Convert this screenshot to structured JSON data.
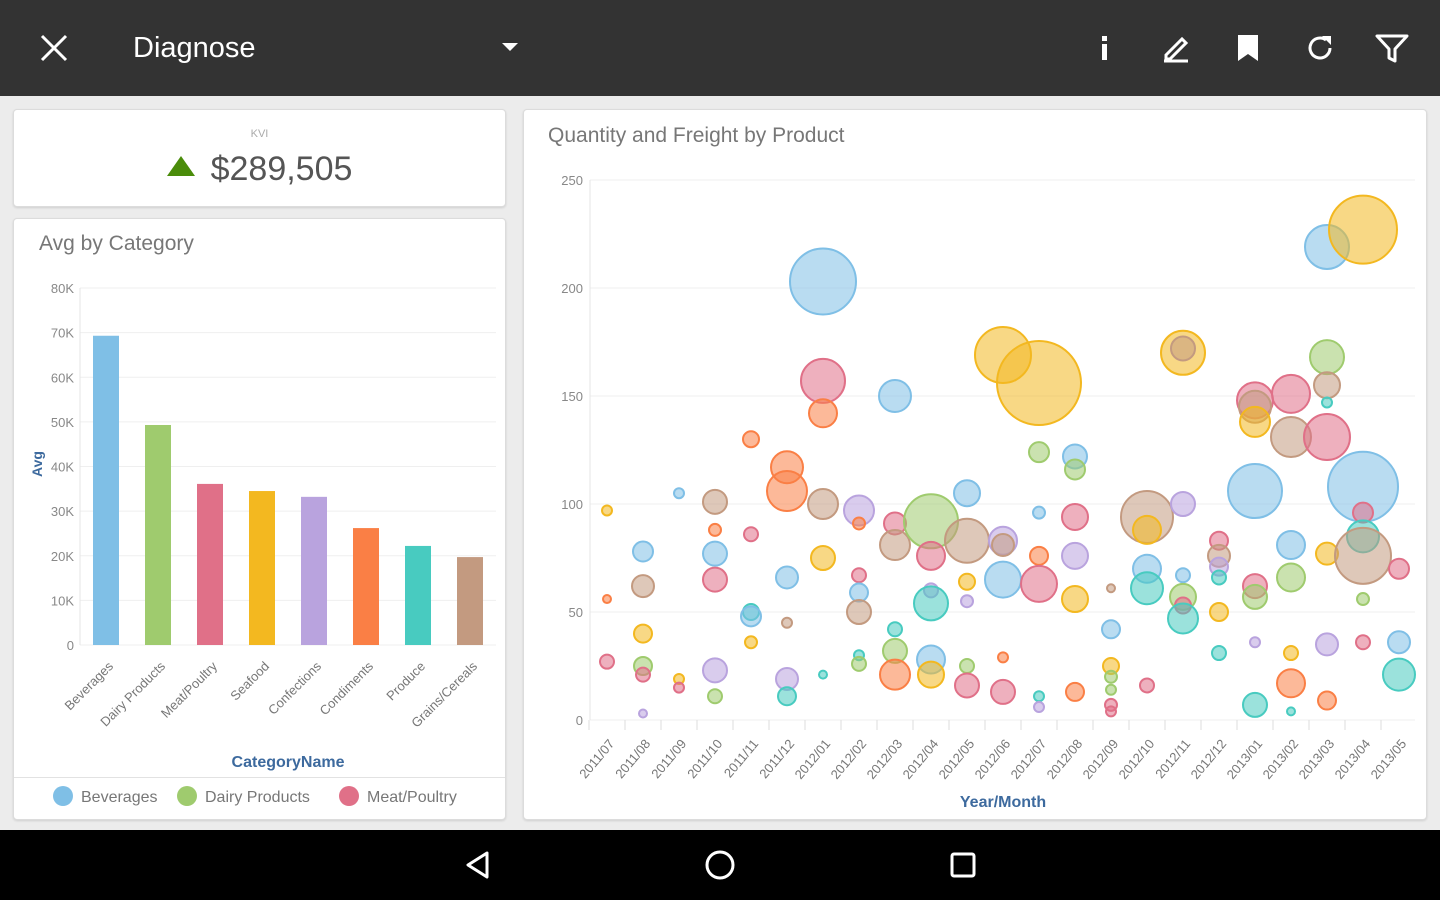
{
  "header": {
    "title": "Diagnose",
    "icons": [
      "close-icon",
      "dropdown-icon",
      "info-icon",
      "edit-icon",
      "bookmark-icon",
      "refresh-icon",
      "filter-icon"
    ]
  },
  "kpi": {
    "label": "KVI",
    "value": "$289,505",
    "trend": "up",
    "trend_color": "#4a8c0a"
  },
  "colors": [
    "#7fbfe6",
    "#9fcb6e",
    "#e07088",
    "#f3b820",
    "#b9a3de",
    "#fa7f45",
    "#48cbc0",
    "#c39a80"
  ],
  "chart_data": [
    {
      "type": "bar",
      "title": "Avg by Category",
      "xlabel": "CategoryName",
      "ylabel": "Avg",
      "categories": [
        "Beverages",
        "Dairy Products",
        "Meat/Poultry",
        "Seafood",
        "Confections",
        "Condiments",
        "Produce",
        "Grains/Cereals"
      ],
      "values": [
        69300,
        49300,
        36100,
        34500,
        33200,
        26200,
        22200,
        19700
      ],
      "ylim": [
        0,
        80000
      ],
      "yticks": [
        "0",
        "10K",
        "20K",
        "30K",
        "40K",
        "50K",
        "60K",
        "70K",
        "80K"
      ],
      "legend": [
        "Beverages",
        "Dairy Products",
        "Meat/Poultry"
      ],
      "legend_placement": "bottom"
    },
    {
      "type": "scatter",
      "title": "Quantity and Freight by Product",
      "xlabel": "Year/Month",
      "ylabel": "",
      "ylim": [
        0,
        250
      ],
      "yticks": [
        "0",
        "50",
        "100",
        "150",
        "200",
        "250"
      ],
      "x": [
        "2011/07",
        "2011/08",
        "2011/09",
        "2011/10",
        "2011/11",
        "2011/12",
        "2012/01",
        "2012/02",
        "2012/03",
        "2012/04",
        "2012/05",
        "2012/06",
        "2012/07",
        "2012/08",
        "2012/09",
        "2012/10",
        "2012/11",
        "2012/12",
        "2013/01",
        "2013/02",
        "2013/03",
        "2013/04",
        "2013/05"
      ],
      "point_fields": [
        "x_index",
        "y",
        "size",
        "category_index"
      ],
      "points": [
        [
          0,
          97,
          5,
          3
        ],
        [
          0,
          56,
          4,
          5
        ],
        [
          0,
          27,
          7,
          2
        ],
        [
          1,
          78,
          10,
          0
        ],
        [
          1,
          62,
          11,
          7
        ],
        [
          1,
          40,
          9,
          3
        ],
        [
          1,
          25,
          9,
          1
        ],
        [
          1,
          21,
          7,
          2
        ],
        [
          1,
          3,
          4,
          4
        ],
        [
          2,
          105,
          5,
          0
        ],
        [
          2,
          19,
          5,
          3
        ],
        [
          2,
          15,
          5,
          2
        ],
        [
          3,
          101,
          12,
          7
        ],
        [
          3,
          88,
          6,
          5
        ],
        [
          3,
          77,
          12,
          0
        ],
        [
          3,
          65,
          12,
          2
        ],
        [
          3,
          23,
          12,
          4
        ],
        [
          3,
          11,
          7,
          1
        ],
        [
          4,
          130,
          8,
          5
        ],
        [
          4,
          86,
          7,
          2
        ],
        [
          4,
          50,
          8,
          6
        ],
        [
          4,
          48,
          10,
          0
        ],
        [
          4,
          36,
          6,
          3
        ],
        [
          5,
          117,
          16,
          5
        ],
        [
          5,
          106,
          20,
          5
        ],
        [
          5,
          66,
          11,
          0
        ],
        [
          5,
          45,
          5,
          7
        ],
        [
          5,
          19,
          11,
          4
        ],
        [
          5,
          11,
          9,
          6
        ],
        [
          6,
          203,
          33,
          0
        ],
        [
          6,
          157,
          22,
          2
        ],
        [
          6,
          142,
          14,
          5
        ],
        [
          6,
          100,
          15,
          7
        ],
        [
          6,
          75,
          12,
          3
        ],
        [
          6,
          21,
          4,
          6
        ],
        [
          7,
          97,
          15,
          4
        ],
        [
          7,
          91,
          6,
          5
        ],
        [
          7,
          67,
          7,
          2
        ],
        [
          7,
          59,
          9,
          0
        ],
        [
          7,
          50,
          12,
          7
        ],
        [
          7,
          30,
          5,
          6
        ],
        [
          7,
          26,
          7,
          1
        ],
        [
          8,
          150,
          16,
          0
        ],
        [
          8,
          91,
          11,
          2
        ],
        [
          8,
          81,
          15,
          7
        ],
        [
          8,
          42,
          7,
          6
        ],
        [
          8,
          32,
          12,
          1
        ],
        [
          8,
          21,
          15,
          5
        ],
        [
          9,
          92,
          27,
          1
        ],
        [
          9,
          76,
          14,
          2
        ],
        [
          9,
          60,
          7,
          4
        ],
        [
          9,
          54,
          17,
          6
        ],
        [
          9,
          28,
          14,
          0
        ],
        [
          9,
          21,
          13,
          3
        ],
        [
          10,
          105,
          13,
          0
        ],
        [
          10,
          83,
          22,
          7
        ],
        [
          10,
          64,
          8,
          3
        ],
        [
          10,
          55,
          6,
          4
        ],
        [
          10,
          25,
          7,
          1
        ],
        [
          10,
          16,
          12,
          2
        ],
        [
          11,
          169,
          28,
          3
        ],
        [
          11,
          83,
          14,
          4
        ],
        [
          11,
          81,
          11,
          7
        ],
        [
          11,
          65,
          18,
          0
        ],
        [
          11,
          29,
          5,
          5
        ],
        [
          11,
          13,
          12,
          2
        ],
        [
          12,
          156,
          42,
          3
        ],
        [
          12,
          124,
          10,
          1
        ],
        [
          12,
          96,
          6,
          0
        ],
        [
          12,
          76,
          9,
          5
        ],
        [
          12,
          63,
          18,
          2
        ],
        [
          12,
          11,
          5,
          6
        ],
        [
          12,
          6,
          5,
          4
        ],
        [
          13,
          122,
          12,
          0
        ],
        [
          13,
          116,
          10,
          1
        ],
        [
          13,
          94,
          13,
          2
        ],
        [
          13,
          76,
          13,
          4
        ],
        [
          13,
          56,
          13,
          3
        ],
        [
          13,
          13,
          9,
          5
        ],
        [
          14,
          61,
          4,
          7
        ],
        [
          14,
          42,
          9,
          0
        ],
        [
          14,
          25,
          8,
          3
        ],
        [
          14,
          20,
          6,
          1
        ],
        [
          14,
          14,
          5,
          1
        ],
        [
          14,
          7,
          6,
          2
        ],
        [
          14,
          4,
          5,
          2
        ],
        [
          15,
          94,
          26,
          7
        ],
        [
          15,
          88,
          14,
          3
        ],
        [
          15,
          70,
          14,
          0
        ],
        [
          15,
          61,
          16,
          6
        ],
        [
          15,
          16,
          7,
          2
        ],
        [
          16,
          170,
          22,
          3
        ],
        [
          16,
          172,
          12,
          7
        ],
        [
          16,
          100,
          12,
          4
        ],
        [
          16,
          67,
          7,
          0
        ],
        [
          16,
          57,
          13,
          1
        ],
        [
          16,
          53,
          8,
          2
        ],
        [
          16,
          47,
          15,
          6
        ],
        [
          17,
          83,
          9,
          2
        ],
        [
          17,
          76,
          11,
          7
        ],
        [
          17,
          71,
          9,
          4
        ],
        [
          17,
          66,
          7,
          6
        ],
        [
          17,
          50,
          9,
          3
        ],
        [
          17,
          31,
          7,
          6
        ],
        [
          18,
          148,
          18,
          2
        ],
        [
          18,
          145,
          16,
          7
        ],
        [
          18,
          138,
          15,
          3
        ],
        [
          18,
          106,
          27,
          0
        ],
        [
          18,
          62,
          12,
          2
        ],
        [
          18,
          57,
          12,
          1
        ],
        [
          18,
          36,
          5,
          4
        ],
        [
          18,
          7,
          12,
          6
        ],
        [
          19,
          151,
          19,
          2
        ],
        [
          19,
          131,
          20,
          7
        ],
        [
          19,
          81,
          14,
          0
        ],
        [
          19,
          66,
          14,
          1
        ],
        [
          19,
          31,
          7,
          3
        ],
        [
          19,
          17,
          14,
          5
        ],
        [
          19,
          4,
          4,
          6
        ],
        [
          20,
          219,
          22,
          0
        ],
        [
          20,
          168,
          17,
          1
        ],
        [
          20,
          155,
          13,
          7
        ],
        [
          20,
          147,
          5,
          6
        ],
        [
          20,
          131,
          23,
          2
        ],
        [
          20,
          77,
          11,
          3
        ],
        [
          20,
          35,
          11,
          4
        ],
        [
          20,
          9,
          9,
          5
        ],
        [
          21,
          227,
          34,
          3
        ],
        [
          21,
          108,
          35,
          0
        ],
        [
          21,
          96,
          10,
          2
        ],
        [
          21,
          85,
          16,
          6
        ],
        [
          21,
          76,
          28,
          7
        ],
        [
          21,
          56,
          6,
          1
        ],
        [
          21,
          36,
          7,
          2
        ],
        [
          22,
          70,
          10,
          2
        ],
        [
          22,
          36,
          11,
          0
        ],
        [
          22,
          21,
          16,
          6
        ]
      ]
    }
  ],
  "navbar": {
    "icons": [
      "back-icon",
      "home-icon",
      "recents-icon"
    ]
  }
}
